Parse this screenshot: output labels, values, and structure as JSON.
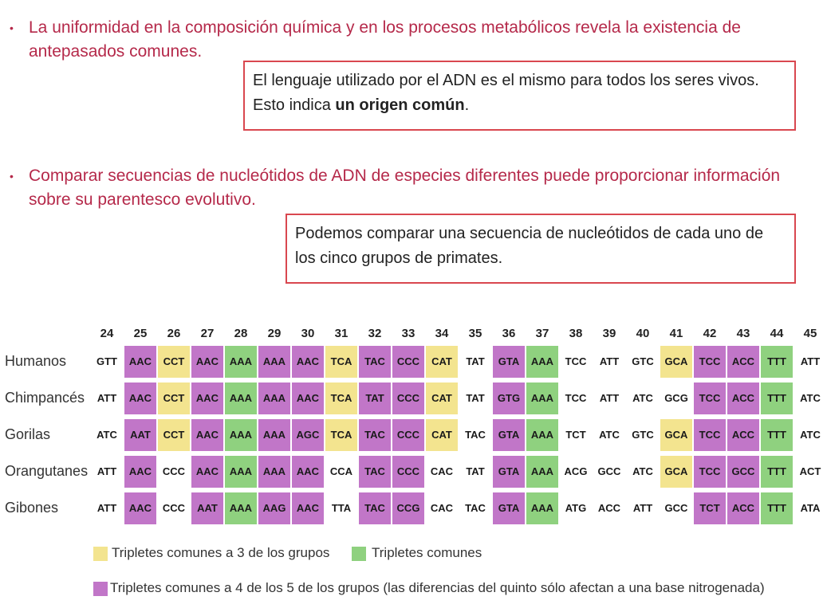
{
  "bullets": [
    {
      "text": "La uniformidad en la composición química y en los procesos metabólicos revela la existencia de antepasados comunes."
    },
    {
      "text": "Comparar secuencias de nucleótidos de ADN de especies diferentes puede proporcionar información sobre su parentesco evolutivo."
    }
  ],
  "boxes": [
    {
      "line1": "El lenguaje utilizado por el ADN es el mismo para todos los seres vivos.",
      "line2_pre": "Esto indica ",
      "line2_bold": "un origen común",
      "line2_post": "."
    },
    {
      "text": "Podemos comparar una secuencia de nucleótidos de cada uno de los cinco grupos de primates."
    }
  ],
  "colors": {
    "common3": "#f3e48f",
    "common": "#8fd17f",
    "common4": "#c176c8",
    "accent": "#b5294a",
    "box_border": "#d9474f"
  },
  "table": {
    "positions": [
      "24",
      "25",
      "26",
      "27",
      "28",
      "29",
      "30",
      "31",
      "32",
      "33",
      "34",
      "35",
      "36",
      "37",
      "38",
      "39",
      "40",
      "41",
      "42",
      "43",
      "44",
      "45"
    ],
    "rows": [
      {
        "label": "Humanos",
        "cells": [
          "GTT",
          "AAC",
          "CCT",
          "AAC",
          "AAA",
          "AAA",
          "AAC",
          "TCA",
          "TAC",
          "CCC",
          "CAT",
          "TAT",
          "GTA",
          "AAA",
          "TCC",
          "ATT",
          "GTC",
          "GCA",
          "TCC",
          "ACC",
          "TTT",
          "ATT"
        ]
      },
      {
        "label": "Chimpancés",
        "cells": [
          "ATT",
          "AAC",
          "CCT",
          "AAC",
          "AAA",
          "AAA",
          "AAC",
          "TCA",
          "TAT",
          "CCC",
          "CAT",
          "TAT",
          "GTG",
          "AAA",
          "TCC",
          "ATT",
          "ATC",
          "GCG",
          "TCC",
          "ACC",
          "TTT",
          "ATC"
        ]
      },
      {
        "label": "Gorilas",
        "cells": [
          "ATC",
          "AAT",
          "CCT",
          "AAC",
          "AAA",
          "AAA",
          "AGC",
          "TCA",
          "TAC",
          "CCC",
          "CAT",
          "TAC",
          "GTA",
          "AAA",
          "TCT",
          "ATC",
          "GTC",
          "GCA",
          "TCC",
          "ACC",
          "TTT",
          "ATC"
        ]
      },
      {
        "label": "Orangutanes",
        "cells": [
          "ATT",
          "AAC",
          "CCC",
          "AAC",
          "AAA",
          "AAA",
          "AAC",
          "CCA",
          "TAC",
          "CCC",
          "CAC",
          "TAT",
          "GTA",
          "AAA",
          "ACG",
          "GCC",
          "ATC",
          "GCA",
          "TCC",
          "GCC",
          "TTT",
          "ACT"
        ]
      },
      {
        "label": "Gibones",
        "cells": [
          "ATT",
          "AAC",
          "CCC",
          "AAT",
          "AAA",
          "AAG",
          "AAC",
          "TTA",
          "TAC",
          "CCG",
          "CAC",
          "TAC",
          "GTA",
          "AAA",
          "ATG",
          "ACC",
          "ATT",
          "GCC",
          "TCT",
          "ACC",
          "TTT",
          "ATA"
        ]
      }
    ],
    "highlight": {
      "col_types": [
        null,
        "p",
        "y",
        "p",
        "g",
        "p",
        "p",
        "y",
        "p",
        "p",
        "y",
        null,
        "p",
        "g",
        null,
        null,
        null,
        "y",
        "p",
        "p",
        "g",
        null
      ],
      "row_mask_y": {
        "2": [
          true,
          true,
          true,
          false,
          false
        ],
        "7": [
          true,
          true,
          true,
          false,
          false
        ],
        "10": [
          true,
          true,
          true,
          false,
          false
        ],
        "17": [
          true,
          false,
          true,
          true,
          false
        ]
      }
    }
  },
  "legend": [
    {
      "color": "#f3e48f",
      "text": "Tripletes comunes a 3 de los grupos"
    },
    {
      "color": "#8fd17f",
      "text": "Tripletes comunes"
    },
    {
      "color": "#c176c8",
      "text": "Tripletes comunes a 4 de los 5 de los grupos (las diferencias del quinto sólo afectan a una base nitrogenada)"
    }
  ]
}
